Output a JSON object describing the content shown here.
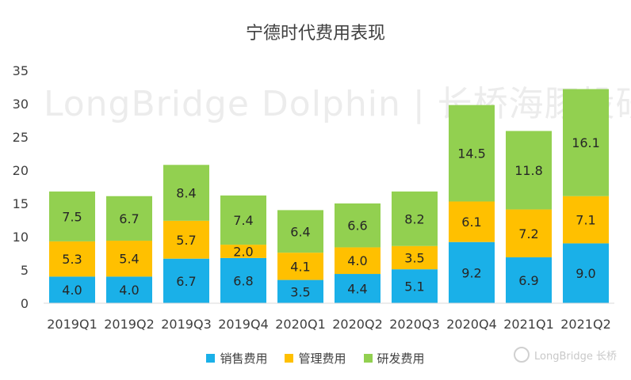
{
  "watermark_text": "LongBridge Dolphin | 长桥海豚投研",
  "brand_text": "LongBridge 长桥",
  "chart_data": {
    "type": "bar",
    "stacked": true,
    "title": "宁德时代费用表现",
    "categories": [
      "2019Q1",
      "2019Q2",
      "2019Q3",
      "2019Q4",
      "2020Q1",
      "2020Q2",
      "2020Q3",
      "2020Q4",
      "2021Q1",
      "2021Q2"
    ],
    "series": [
      {
        "name": "销售费用",
        "color": "#1ab0e8",
        "values": [
          4.0,
          4.0,
          6.7,
          6.8,
          3.5,
          4.4,
          5.1,
          9.2,
          6.9,
          9.0
        ]
      },
      {
        "name": "管理费用",
        "color": "#ffc000",
        "values": [
          5.3,
          5.4,
          5.7,
          2.0,
          4.1,
          4.0,
          3.5,
          6.1,
          7.2,
          7.1
        ]
      },
      {
        "name": "研发费用",
        "color": "#92d050",
        "values": [
          7.5,
          6.7,
          8.4,
          7.4,
          6.4,
          6.6,
          8.2,
          14.5,
          11.8,
          16.1
        ]
      }
    ],
    "ylim": [
      0,
      35
    ],
    "yticks": [
      0,
      5,
      10,
      15,
      20,
      25,
      30,
      35
    ],
    "legend_position": "bottom",
    "grid": false
  }
}
